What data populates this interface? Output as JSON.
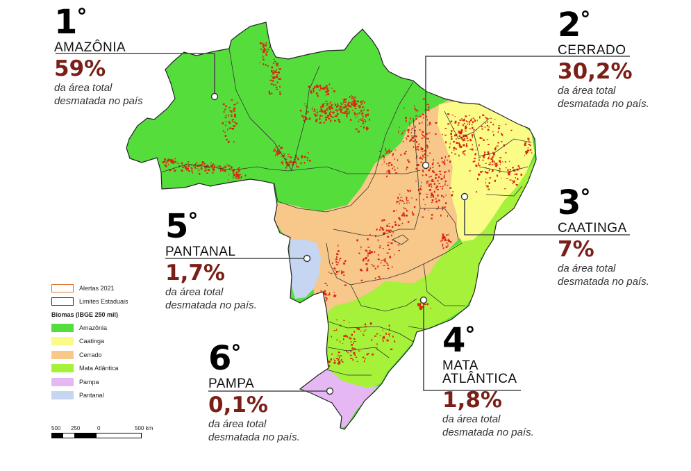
{
  "colors": {
    "amazonia": "#55dd3c",
    "caatinga": "#fbfb88",
    "cerrado": "#f8c78a",
    "mata_atlantica": "#a6f23a",
    "pampa": "#e6b8f3",
    "pantanal": "#c5d5f2",
    "alertas": "#d9270e",
    "percent": "#7a1f17"
  },
  "callouts": [
    {
      "rank": "1",
      "biome": "AMAZÔNIA",
      "percent": "59%",
      "desc1": "da área total",
      "desc2": "desmatada no país"
    },
    {
      "rank": "2",
      "biome": "CERRADO",
      "percent": "30,2%",
      "desc1": "da área total",
      "desc2": "desmatada no país."
    },
    {
      "rank": "3",
      "biome": "CAATINGA",
      "percent": "7%",
      "desc1": "da área total",
      "desc2": "desmatada no país."
    },
    {
      "rank": "4",
      "biome": "MATA",
      "biome2": "ATLÂNTICA",
      "percent": "1,8%",
      "desc1": "da área total",
      "desc2": "desmatada no país."
    },
    {
      "rank": "5",
      "biome": "PANTANAL",
      "percent": "1,7%",
      "desc1": "da área total",
      "desc2": "desmatada no país."
    },
    {
      "rank": "6",
      "biome": "PAMPA",
      "percent": "0,1%",
      "desc1": "da área total",
      "desc2": "desmatada no país."
    }
  ],
  "legend": {
    "alertas": "Alertas 2021",
    "limites": "Limites Estaduais",
    "biomas_title": "Biomas (IBGE 250 mil)",
    "items": [
      "Amazônia",
      "Caatinga",
      "Cerrado",
      "Mata Atlântica",
      "Pampa",
      "Pantanal"
    ]
  },
  "scale": {
    "labels": [
      "500",
      "250",
      "0",
      "500 km"
    ]
  }
}
